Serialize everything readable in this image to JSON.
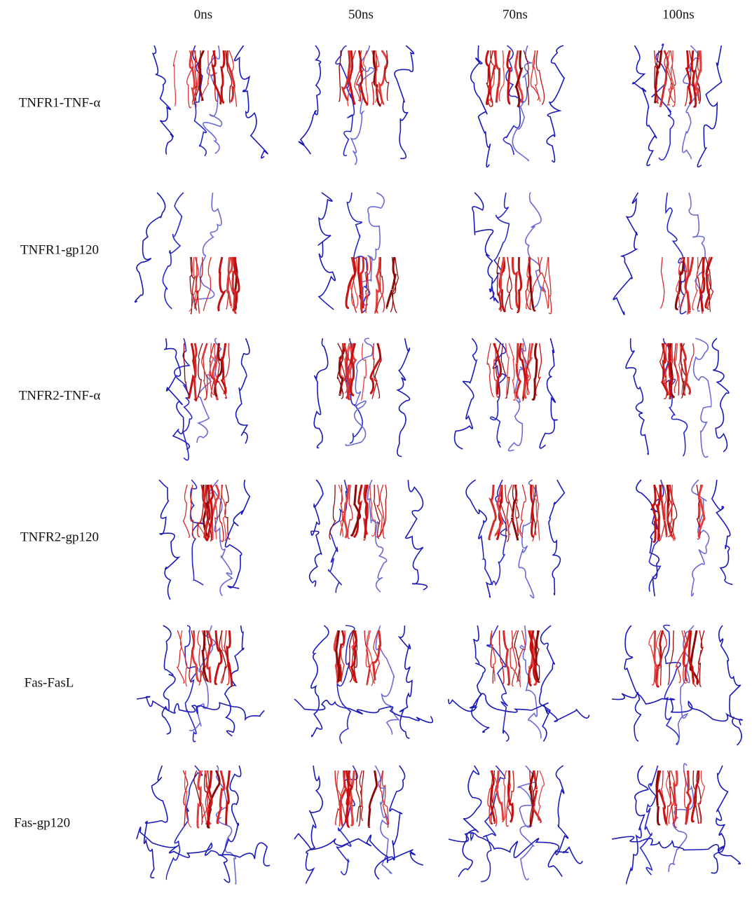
{
  "column_headers": [
    "0ns",
    "50ns",
    "70ns",
    "100ns"
  ],
  "row_labels": [
    "TNFR1-TNF-α",
    "TNFR1-gp120",
    "TNFR2-TNF-α",
    "TNFR2-gp120",
    "Fas-FasL",
    "Fas-gp120"
  ]
}
